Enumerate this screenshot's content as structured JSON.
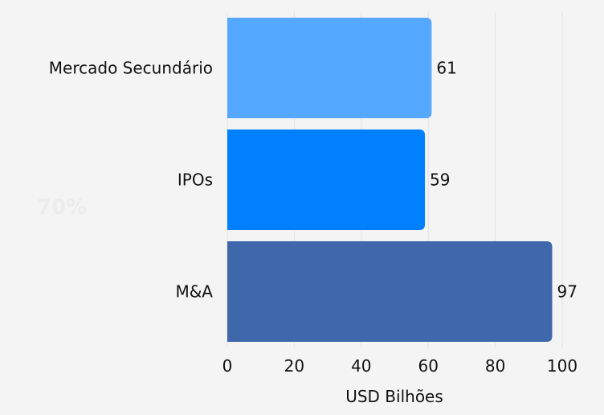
{
  "chart_data": {
    "type": "bar",
    "orientation": "horizontal",
    "categories": [
      "Mercado Secundário",
      "IPOs",
      "M&A"
    ],
    "values": [
      61,
      59,
      97
    ],
    "colors": [
      "#55a8ff",
      "#0080ff",
      "#3f67ab"
    ],
    "xlabel": "USD Bilhões",
    "ylabel": "",
    "title": "",
    "xlim": [
      0,
      100
    ],
    "xticks": [
      0,
      20,
      40,
      60,
      80,
      100
    ],
    "grid": true,
    "data_labels": [
      "61",
      "59",
      "97"
    ]
  },
  "watermark": "70%"
}
